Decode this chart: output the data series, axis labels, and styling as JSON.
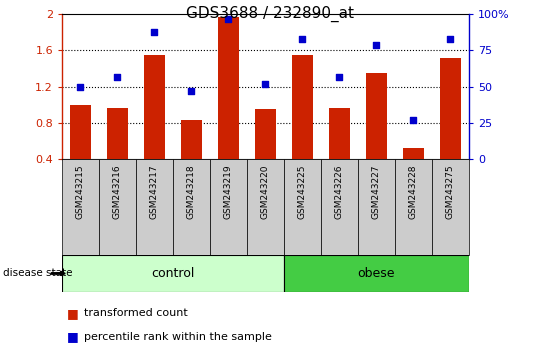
{
  "title": "GDS3688 / 232890_at",
  "samples": [
    "GSM243215",
    "GSM243216",
    "GSM243217",
    "GSM243218",
    "GSM243219",
    "GSM243220",
    "GSM243225",
    "GSM243226",
    "GSM243227",
    "GSM243228",
    "GSM243275"
  ],
  "bar_values": [
    1.0,
    0.97,
    1.55,
    0.83,
    1.97,
    0.95,
    1.55,
    0.97,
    1.35,
    0.52,
    1.52
  ],
  "dot_values": [
    50,
    57,
    88,
    47,
    97,
    52,
    83,
    57,
    79,
    27,
    83
  ],
  "bar_color": "#cc2200",
  "dot_color": "#0000cc",
  "ylim_left": [
    0.4,
    2.0
  ],
  "ylim_right": [
    0,
    100
  ],
  "yticks_left": [
    0.4,
    0.8,
    1.2,
    1.6,
    2.0
  ],
  "ytick_labels_left": [
    "0.4",
    "0.8",
    "1.2",
    "1.6",
    "2"
  ],
  "yticks_right": [
    0,
    25,
    50,
    75,
    100
  ],
  "ytick_labels_right": [
    "0",
    "25",
    "50",
    "75",
    "100%"
  ],
  "grid_lines": [
    0.8,
    1.2,
    1.6
  ],
  "n_control": 6,
  "n_obese": 5,
  "control_label": "control",
  "obese_label": "obese",
  "disease_state_label": "disease state",
  "legend_bar_label": "transformed count",
  "legend_dot_label": "percentile rank within the sample",
  "control_color": "#ccffcc",
  "obese_color": "#44cc44",
  "bar_bg_color": "#cccccc",
  "plot_bg_color": "#ffffff",
  "title_fontsize": 11,
  "tick_fontsize": 8,
  "label_fontsize": 8.5
}
